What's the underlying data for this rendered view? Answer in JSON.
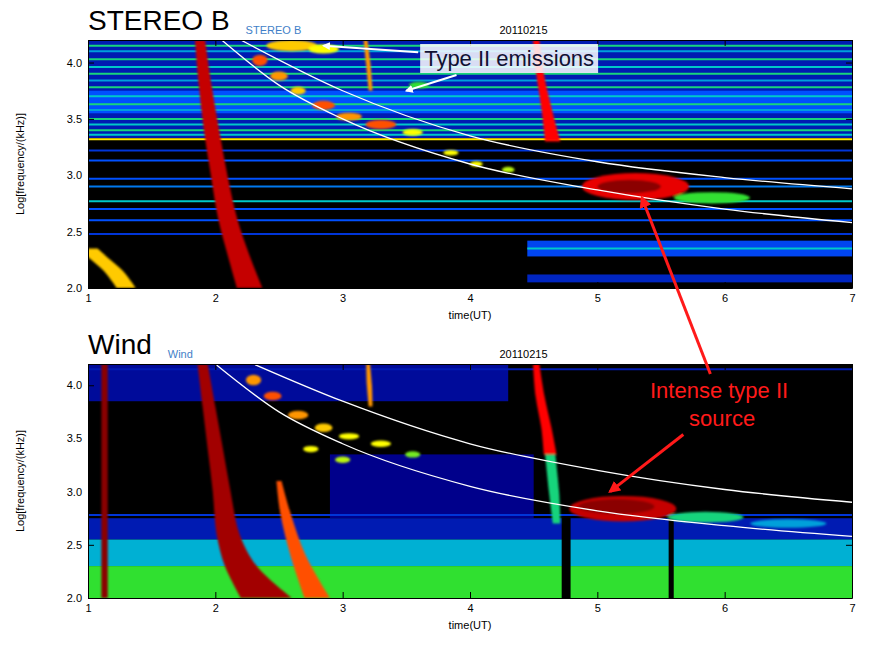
{
  "chart_data": [
    {
      "type": "spectrogram",
      "title": "STEREO B",
      "instrument": "STEREO B",
      "date": "20110215",
      "x_label": "time(UT)",
      "y_label": "Log[frequency/(kHz)]",
      "xlim": [
        1,
        7
      ],
      "ylim": [
        2.0,
        4.2
      ],
      "xticks": [
        1,
        2,
        3,
        4,
        5,
        6,
        7
      ],
      "yticks": [
        {
          "value": 2,
          "label": "2.0"
        },
        {
          "value": 2.5,
          "label": "2.5"
        },
        {
          "value": 3,
          "label": "3.0"
        },
        {
          "value": 3.5,
          "label": "3.5"
        },
        {
          "value": 4,
          "label": "4.0"
        }
      ],
      "zlim": [
        0,
        1
      ],
      "regions": [
        {
          "x": [
            1,
            7
          ],
          "y": [
            2.0,
            4.2
          ],
          "level": 0
        },
        {
          "x": [
            1,
            7
          ],
          "y": [
            3.33,
            4.2
          ],
          "level": 0.2
        },
        {
          "x": [
            1,
            7
          ],
          "y": [
            3.55,
            3.75
          ],
          "level": 0.3
        },
        {
          "x": [
            4.45,
            7
          ],
          "y": [
            2.28,
            2.42
          ],
          "level": 0.28
        },
        {
          "x": [
            4.45,
            7
          ],
          "y": [
            2.05,
            2.12
          ],
          "level": 0.22
        }
      ],
      "lines": [
        {
          "x": [
            1,
            7
          ],
          "y": 4.15,
          "level": 0.5
        },
        {
          "x": [
            1,
            7
          ],
          "y": 4.1,
          "level": 0.4
        },
        {
          "x": [
            1,
            7
          ],
          "y": 4.03,
          "level": 0.5
        },
        {
          "x": [
            1,
            7
          ],
          "y": 3.96,
          "level": 0.45
        },
        {
          "x": [
            1,
            7
          ],
          "y": 3.9,
          "level": 0.5
        },
        {
          "x": [
            1,
            7
          ],
          "y": 3.84,
          "level": 0.4
        },
        {
          "x": [
            1,
            7
          ],
          "y": 3.78,
          "level": 0.5
        },
        {
          "x": [
            1,
            7
          ],
          "y": 3.7,
          "level": 0.45
        },
        {
          "x": [
            1,
            7
          ],
          "y": 3.63,
          "level": 0.5
        },
        {
          "x": [
            1,
            7
          ],
          "y": 3.58,
          "level": 0.4
        },
        {
          "x": [
            1,
            7
          ],
          "y": 3.5,
          "level": 0.5
        },
        {
          "x": [
            1,
            7
          ],
          "y": 3.45,
          "level": 0.45
        },
        {
          "x": [
            1,
            7
          ],
          "y": 3.4,
          "level": 0.5
        },
        {
          "x": [
            1,
            7
          ],
          "y": 3.36,
          "level": 0.45
        },
        {
          "x": [
            1,
            7
          ],
          "y": 3.32,
          "level": 0.72
        },
        {
          "x": [
            1,
            7
          ],
          "y": 3.22,
          "level": 0.25
        },
        {
          "x": [
            1,
            7
          ],
          "y": 3.13,
          "level": 0.3
        },
        {
          "x": [
            1,
            7
          ],
          "y": 2.97,
          "level": 0.3
        },
        {
          "x": [
            1,
            7
          ],
          "y": 2.9,
          "level": 0.35
        },
        {
          "x": [
            1,
            7
          ],
          "y": 2.77,
          "level": 0.45
        },
        {
          "x": [
            1,
            7
          ],
          "y": 2.7,
          "level": 0.3
        },
        {
          "x": [
            1,
            7
          ],
          "y": 2.6,
          "level": 0.3
        },
        {
          "x": [
            1,
            7
          ],
          "y": 2.48,
          "level": 0.25
        },
        {
          "x": [
            4.45,
            7
          ],
          "y": 2.35,
          "level": 0.45
        }
      ],
      "bursts": [
        {
          "x": [
            1.88,
            1.92,
            1.97,
            2.03,
            2.1,
            2.18,
            2.27
          ],
          "y": [
            4.2,
            3.8,
            3.4,
            3.0,
            2.6,
            2.3,
            2.0
          ],
          "widths": [
            0.08,
            0.1,
            0.12,
            0.13,
            0.15,
            0.17,
            0.2
          ],
          "level": 0.95
        },
        {
          "x": [
            3.18,
            3.2,
            3.22
          ],
          "y": [
            4.2,
            4.0,
            3.75
          ],
          "widths": [
            0.03,
            0.035,
            0.03
          ],
          "level": 0.8
        },
        {
          "x": [
            4.52,
            4.55,
            4.6,
            4.65
          ],
          "y": [
            4.2,
            3.9,
            3.6,
            3.3
          ],
          "widths": [
            0.05,
            0.06,
            0.08,
            0.12
          ],
          "level": 0.9
        },
        {
          "x": [
            1.0,
            1.1,
            1.2,
            1.3
          ],
          "y": [
            2.35,
            2.25,
            2.15,
            2.0
          ],
          "widths": [
            0.15,
            0.15,
            0.15,
            0.15
          ],
          "level": 0.75
        }
      ],
      "blobs": [
        {
          "x": 2.35,
          "y": 4.02,
          "rx": 0.06,
          "ry": 0.05,
          "level": 0.85
        },
        {
          "x": 2.5,
          "y": 3.88,
          "rx": 0.07,
          "ry": 0.04,
          "level": 0.8
        },
        {
          "x": 2.65,
          "y": 3.75,
          "rx": 0.06,
          "ry": 0.035,
          "level": 0.75
        },
        {
          "x": 2.85,
          "y": 3.62,
          "rx": 0.09,
          "ry": 0.04,
          "level": 0.85
        },
        {
          "x": 3.05,
          "y": 3.52,
          "rx": 0.1,
          "ry": 0.035,
          "level": 0.8
        },
        {
          "x": 3.3,
          "y": 3.45,
          "rx": 0.12,
          "ry": 0.04,
          "level": 0.85
        },
        {
          "x": 3.55,
          "y": 3.38,
          "rx": 0.08,
          "ry": 0.03,
          "level": 0.7
        },
        {
          "x": 3.85,
          "y": 3.2,
          "rx": 0.06,
          "ry": 0.025,
          "level": 0.7
        },
        {
          "x": 4.05,
          "y": 3.1,
          "rx": 0.05,
          "ry": 0.025,
          "level": 0.7
        },
        {
          "x": 4.3,
          "y": 3.05,
          "rx": 0.05,
          "ry": 0.025,
          "level": 0.65
        },
        {
          "x": 2.6,
          "y": 4.15,
          "rx": 0.2,
          "ry": 0.05,
          "level": 0.75
        },
        {
          "x": 2.85,
          "y": 4.12,
          "rx": 0.12,
          "ry": 0.04,
          "level": 0.7
        },
        {
          "x": 3.6,
          "y": 3.8,
          "rx": 0.08,
          "ry": 0.03,
          "level": 0.55
        },
        {
          "x": 5.3,
          "y": 2.9,
          "rx": 0.42,
          "ry": 0.12,
          "level": 0.92
        },
        {
          "x": 5.25,
          "y": 2.9,
          "rx": 0.25,
          "ry": 0.06,
          "level": 1.0
        },
        {
          "x": 5.9,
          "y": 2.8,
          "rx": 0.3,
          "ry": 0.05,
          "level": 0.55
        }
      ],
      "curves": [
        {
          "x": [
            2.2,
            3,
            4,
            5,
            6,
            7
          ],
          "y": [
            4.2,
            3.75,
            3.35,
            3.12,
            2.98,
            2.88
          ],
          "color": "#ffffff"
        },
        {
          "x": [
            2.05,
            2.5,
            3,
            4,
            5,
            6,
            7
          ],
          "y": [
            4.2,
            3.8,
            3.5,
            3.1,
            2.87,
            2.7,
            2.58
          ],
          "color": "#ffffff"
        }
      ],
      "annotations": [
        {
          "text": "Type II emissions",
          "targets": [
            {
              "panel": "STEREO B",
              "x": 2.85,
              "y": 4.15
            },
            {
              "panel": "STEREO B",
              "x": 3.5,
              "y": 3.75
            }
          ]
        }
      ]
    },
    {
      "type": "spectrogram",
      "title": "Wind",
      "instrument": "Wind",
      "date": "20110215",
      "x_label": "time(UT)",
      "y_label": "Log[frequency/(kHz)]",
      "xlim": [
        1,
        7
      ],
      "ylim": [
        2.0,
        4.2
      ],
      "xticks": [
        1,
        2,
        3,
        4,
        5,
        6,
        7
      ],
      "yticks": [
        {
          "value": 2,
          "label": "2.0"
        },
        {
          "value": 2.5,
          "label": "2.5"
        },
        {
          "value": 3,
          "label": "3.0"
        },
        {
          "value": 3.5,
          "label": "3.5"
        },
        {
          "value": 4,
          "label": "4.0"
        }
      ],
      "zlim": [
        0,
        1
      ],
      "regions": [
        {
          "x": [
            1,
            7
          ],
          "y": [
            2.0,
            4.2
          ],
          "level": 0
        },
        {
          "x": [
            1,
            4.3
          ],
          "y": [
            3.85,
            4.2
          ],
          "level": 0.17
        },
        {
          "x": [
            2.9,
            4.5
          ],
          "y": [
            2.75,
            3.35
          ],
          "level": 0.15
        },
        {
          "x": [
            1,
            7
          ],
          "y": [
            2.55,
            2.75
          ],
          "level": 0.2
        },
        {
          "x": [
            1,
            7
          ],
          "y": [
            2.3,
            2.55
          ],
          "level": 0.42
        },
        {
          "x": [
            1,
            7
          ],
          "y": [
            2.0,
            2.3
          ],
          "level": 0.55
        },
        {
          "x": [
            4.72,
            4.79
          ],
          "y": [
            2.0,
            3.15
          ],
          "level": 0
        },
        {
          "x": [
            5.56,
            5.6
          ],
          "y": [
            2.0,
            3.0
          ],
          "level": 0
        }
      ],
      "lines": [
        {
          "x": [
            1,
            7
          ],
          "y": 2.78,
          "level": 0.25
        },
        {
          "x": [
            1,
            7
          ],
          "y": 4.15,
          "level": 0.2
        }
      ],
      "bursts": [
        {
          "x": [
            1.13,
            1.13
          ],
          "y": [
            4.2,
            2.0
          ],
          "widths": [
            0.05,
            0.05
          ],
          "level": 1.0
        },
        {
          "x": [
            1.9,
            1.95,
            2.0,
            2.05,
            2.1,
            2.2,
            2.4
          ],
          "y": [
            4.2,
            3.8,
            3.4,
            3.0,
            2.6,
            2.3,
            2.0
          ],
          "widths": [
            0.08,
            0.1,
            0.12,
            0.14,
            0.18,
            0.25,
            0.4
          ],
          "level": 0.98
        },
        {
          "x": [
            2.5,
            2.55,
            2.65,
            2.8
          ],
          "y": [
            3.1,
            2.8,
            2.4,
            2.0
          ],
          "widths": [
            0.04,
            0.08,
            0.12,
            0.2
          ],
          "level": 0.85
        },
        {
          "x": [
            3.2,
            3.21,
            3.22
          ],
          "y": [
            4.2,
            4.0,
            3.8
          ],
          "widths": [
            0.03,
            0.04,
            0.03
          ],
          "level": 0.8
        },
        {
          "x": [
            4.52,
            4.55,
            4.6,
            4.63
          ],
          "y": [
            4.2,
            3.9,
            3.6,
            3.35
          ],
          "widths": [
            0.05,
            0.07,
            0.08,
            0.1
          ],
          "level": 0.9
        },
        {
          "x": [
            4.63,
            4.66,
            4.68
          ],
          "y": [
            3.35,
            3.0,
            2.7
          ],
          "widths": [
            0.08,
            0.08,
            0.06
          ],
          "level": 0.5
        }
      ],
      "blobs": [
        {
          "x": 2.3,
          "y": 4.05,
          "rx": 0.06,
          "ry": 0.05,
          "level": 0.8
        },
        {
          "x": 2.45,
          "y": 3.9,
          "rx": 0.07,
          "ry": 0.04,
          "level": 0.85
        },
        {
          "x": 2.65,
          "y": 3.72,
          "rx": 0.08,
          "ry": 0.04,
          "level": 0.8
        },
        {
          "x": 2.85,
          "y": 3.6,
          "rx": 0.07,
          "ry": 0.04,
          "level": 0.75
        },
        {
          "x": 3.05,
          "y": 3.52,
          "rx": 0.08,
          "ry": 0.03,
          "level": 0.7
        },
        {
          "x": 3.3,
          "y": 3.45,
          "rx": 0.08,
          "ry": 0.03,
          "level": 0.7
        },
        {
          "x": 3.55,
          "y": 3.35,
          "rx": 0.06,
          "ry": 0.03,
          "level": 0.6
        },
        {
          "x": 2.75,
          "y": 3.4,
          "rx": 0.06,
          "ry": 0.03,
          "level": 0.7
        },
        {
          "x": 3.0,
          "y": 3.3,
          "rx": 0.06,
          "ry": 0.03,
          "level": 0.65
        },
        {
          "x": 5.2,
          "y": 2.84,
          "rx": 0.42,
          "ry": 0.12,
          "level": 0.95
        },
        {
          "x": 5.15,
          "y": 2.86,
          "rx": 0.3,
          "ry": 0.07,
          "level": 1.0
        },
        {
          "x": 5.85,
          "y": 2.76,
          "rx": 0.3,
          "ry": 0.05,
          "level": 0.5
        },
        {
          "x": 6.5,
          "y": 2.7,
          "rx": 0.3,
          "ry": 0.04,
          "level": 0.4
        }
      ],
      "curves": [
        {
          "x": [
            2.3,
            3,
            4,
            5,
            6,
            7
          ],
          "y": [
            4.2,
            3.85,
            3.45,
            3.2,
            3.02,
            2.9
          ],
          "color": "#ffffff"
        },
        {
          "x": [
            2.0,
            2.5,
            3,
            4,
            5,
            6,
            7
          ],
          "y": [
            4.2,
            3.75,
            3.45,
            3.05,
            2.82,
            2.68,
            2.58
          ],
          "color": "#ffffff"
        }
      ],
      "annotations": [
        {
          "text": "Intense type II source",
          "targets": [
            {
              "panel": "Wind",
              "x": 5.1,
              "y": 3.0
            },
            {
              "panel": "STEREO B",
              "x": 5.35,
              "y": 2.8
            }
          ]
        }
      ]
    }
  ]
}
